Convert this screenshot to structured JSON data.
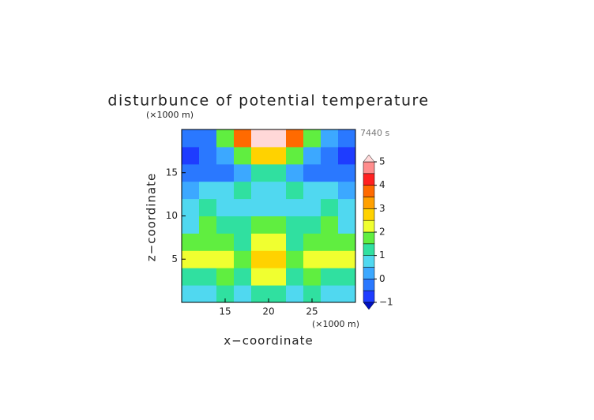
{
  "chart_data": {
    "type": "contour",
    "title": "disturbunce of potential temperature",
    "x_label": "x−coordinate",
    "y_label": "z−coordinate",
    "x_unit": "(×1000 m)",
    "y_unit": "(×1000 m)",
    "annotation": "7440 s",
    "xlim": [
      10,
      30
    ],
    "ylim": [
      0,
      20
    ],
    "xticks": [
      15,
      20,
      25
    ],
    "yticks": [
      5,
      10,
      15
    ],
    "x": [
      11,
      13,
      15,
      17,
      19,
      21,
      23,
      25,
      27,
      29
    ],
    "z": [
      1,
      3,
      5,
      7,
      9,
      11,
      13,
      15,
      17,
      19
    ],
    "values": [
      [
        0.5,
        0.8,
        1.0,
        0.8,
        1.3,
        1.3,
        0.8,
        1.0,
        0.8,
        0.5
      ],
      [
        1.0,
        1.3,
        1.5,
        1.0,
        2.0,
        2.0,
        1.0,
        1.5,
        1.3,
        1.0
      ],
      [
        2.3,
        2.3,
        2.0,
        1.8,
        2.5,
        2.5,
        1.8,
        2.0,
        2.3,
        2.3
      ],
      [
        1.5,
        1.8,
        1.5,
        1.3,
        2.0,
        2.0,
        1.3,
        1.5,
        1.8,
        1.5
      ],
      [
        0.5,
        1.5,
        1.3,
        1.0,
        1.5,
        1.5,
        1.0,
        1.3,
        1.5,
        0.5
      ],
      [
        0.8,
        1.0,
        0.8,
        0.5,
        0.5,
        0.5,
        0.5,
        0.8,
        1.0,
        0.8
      ],
      [
        0.3,
        0.8,
        0.5,
        1.0,
        0.5,
        0.5,
        1.0,
        0.5,
        0.8,
        0.3
      ],
      [
        -0.3,
        -0.5,
        -0.3,
        0.3,
        1.0,
        1.0,
        0.3,
        -0.3,
        -0.5,
        -0.3
      ],
      [
        -0.8,
        -0.5,
        0.3,
        1.5,
        2.5,
        2.5,
        1.5,
        0.3,
        -0.5,
        -0.8
      ],
      [
        -0.5,
        -0.3,
        1.5,
        3.5,
        5.2,
        5.2,
        3.5,
        1.5,
        0,
        -0.5
      ]
    ],
    "levels": [
      -1,
      -0.5,
      0,
      0.5,
      1,
      1.5,
      2,
      2.5,
      3,
      3.5,
      4,
      4.5,
      5
    ],
    "colors": [
      "#0010c0",
      "#1e3cff",
      "#2a78ff",
      "#3ca8ff",
      "#50d8f0",
      "#30e0a0",
      "#60ee40",
      "#f0ff30",
      "#ffd200",
      "#ffa000",
      "#ff6a00",
      "#ff2020",
      "#ff8c8c",
      "#ffd8d8"
    ],
    "cbar_ticks": [
      {
        "value": -1,
        "label": "−1"
      },
      0,
      1,
      2,
      3,
      4,
      5
    ]
  }
}
